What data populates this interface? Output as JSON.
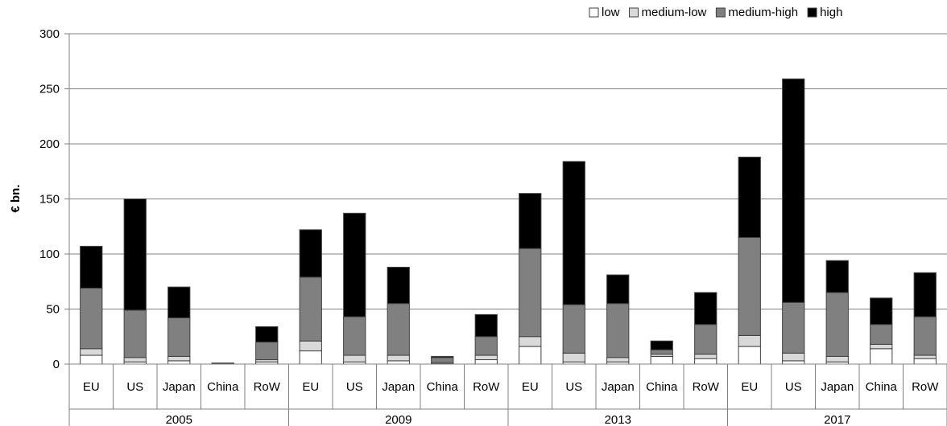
{
  "chart_data": {
    "type": "bar",
    "stacked": true,
    "ylabel": "€ bn.",
    "ylim": [
      0,
      300
    ],
    "yticks": [
      0,
      50,
      100,
      150,
      200,
      250,
      300
    ],
    "grid": true,
    "legend_position": "top-right",
    "groups": [
      {
        "label": "2005",
        "categories": [
          "EU",
          "US",
          "Japan",
          "China",
          "RoW"
        ]
      },
      {
        "label": "2009",
        "categories": [
          "EU",
          "US",
          "Japan",
          "China",
          "RoW"
        ]
      },
      {
        "label": "2013",
        "categories": [
          "EU",
          "US",
          "Japan",
          "China",
          "RoW"
        ]
      },
      {
        "label": "2017",
        "categories": [
          "EU",
          "US",
          "Japan",
          "China",
          "RoW"
        ]
      }
    ],
    "series": [
      {
        "name": "low",
        "color": "#ffffff",
        "values": [
          8,
          2,
          3,
          0.2,
          2,
          12,
          2,
          3,
          0.5,
          4,
          16,
          2,
          2,
          7,
          5,
          16,
          3,
          2,
          14,
          5
        ]
      },
      {
        "name": "medium-low",
        "color": "#d9d9d9",
        "values": [
          6,
          4,
          4,
          0.3,
          2,
          9,
          6,
          5,
          1,
          4,
          9,
          8,
          4,
          2,
          4,
          10,
          7,
          5,
          4,
          3
        ]
      },
      {
        "name": "medium-high",
        "color": "#808080",
        "values": [
          55,
          43,
          35,
          0.5,
          16,
          58,
          35,
          47,
          4.5,
          17,
          80,
          44,
          49,
          4,
          27,
          89,
          46,
          58,
          18,
          35
        ]
      },
      {
        "name": "high",
        "color": "#000000",
        "values": [
          38,
          101,
          28,
          0,
          14,
          43,
          94,
          33,
          1,
          20,
          50,
          130,
          26,
          8,
          29,
          73,
          203,
          29,
          24,
          40
        ]
      }
    ]
  }
}
